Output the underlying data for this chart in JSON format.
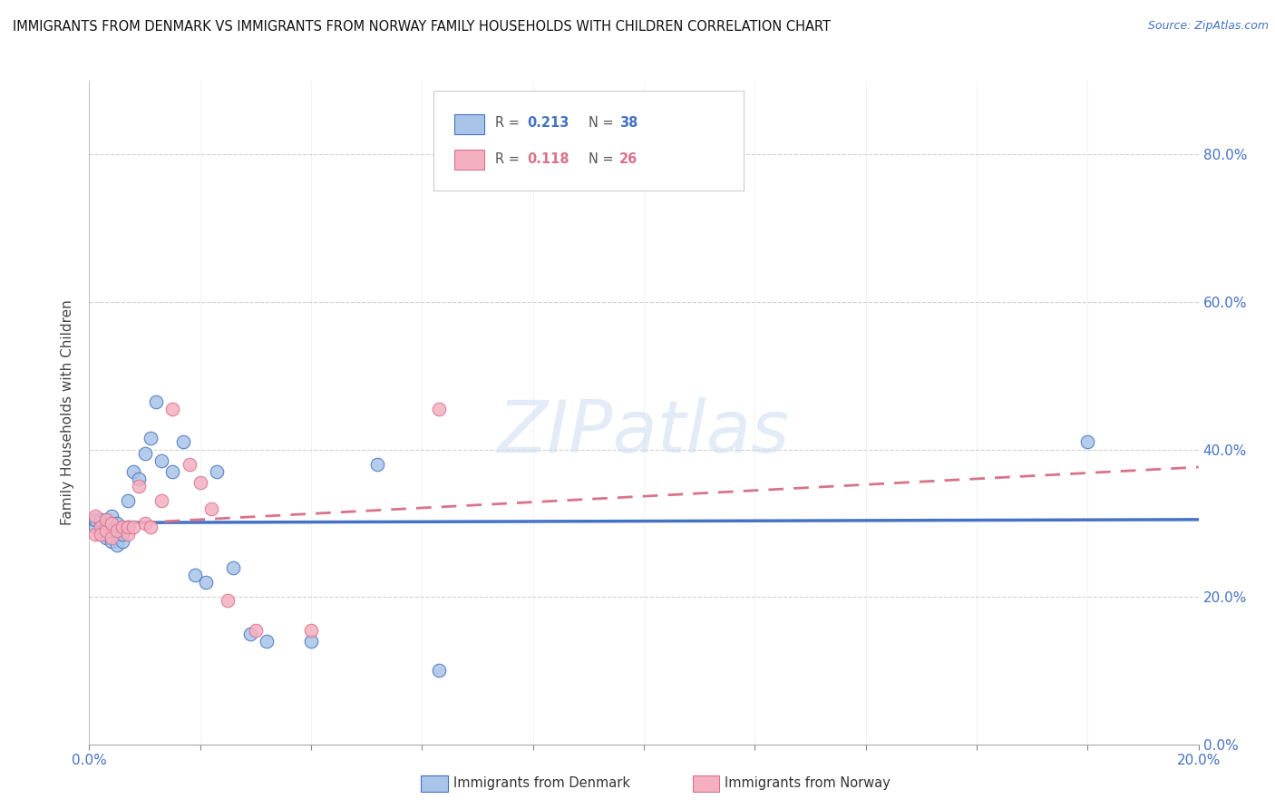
{
  "title": "IMMIGRANTS FROM DENMARK VS IMMIGRANTS FROM NORWAY FAMILY HOUSEHOLDS WITH CHILDREN CORRELATION CHART",
  "source": "Source: ZipAtlas.com",
  "ylabel": "Family Households with Children",
  "denmark_R": 0.213,
  "denmark_N": 38,
  "norway_R": 0.118,
  "norway_N": 26,
  "denmark_color": "#a8c4e8",
  "norway_color": "#f4afc0",
  "denmark_line_color": "#4472c4",
  "norway_line_color": "#d9728a",
  "xlim": [
    0.0,
    0.2
  ],
  "ylim": [
    0.0,
    0.9
  ],
  "watermark": "ZIPatlas",
  "denmark_points_x": [
    0.001,
    0.001,
    0.002,
    0.002,
    0.003,
    0.003,
    0.003,
    0.004,
    0.004,
    0.004,
    0.005,
    0.005,
    0.005,
    0.006,
    0.006,
    0.007,
    0.007,
    0.008,
    0.009,
    0.01,
    0.011,
    0.012,
    0.013,
    0.015,
    0.017,
    0.019,
    0.021,
    0.023,
    0.026,
    0.029,
    0.032,
    0.04,
    0.052,
    0.063,
    0.18
  ],
  "denmark_points_y": [
    0.295,
    0.305,
    0.285,
    0.305,
    0.28,
    0.295,
    0.305,
    0.275,
    0.29,
    0.31,
    0.27,
    0.285,
    0.3,
    0.275,
    0.285,
    0.295,
    0.33,
    0.37,
    0.36,
    0.395,
    0.415,
    0.465,
    0.385,
    0.37,
    0.41,
    0.23,
    0.22,
    0.37,
    0.24,
    0.15,
    0.14,
    0.14,
    0.38,
    0.1,
    0.41
  ],
  "norway_points_x": [
    0.001,
    0.001,
    0.002,
    0.002,
    0.003,
    0.003,
    0.004,
    0.004,
    0.005,
    0.006,
    0.007,
    0.007,
    0.008,
    0.009,
    0.01,
    0.011,
    0.013,
    0.015,
    0.018,
    0.02,
    0.022,
    0.025,
    0.03,
    0.04,
    0.063
  ],
  "norway_points_y": [
    0.285,
    0.31,
    0.295,
    0.285,
    0.29,
    0.305,
    0.28,
    0.3,
    0.29,
    0.295,
    0.285,
    0.295,
    0.295,
    0.35,
    0.3,
    0.295,
    0.33,
    0.455,
    0.38,
    0.355,
    0.32,
    0.195,
    0.155,
    0.155,
    0.455
  ],
  "x_ticks": [
    0.0,
    0.2
  ],
  "y_ticks_right": [
    0.0,
    0.2,
    0.4,
    0.6,
    0.8
  ]
}
